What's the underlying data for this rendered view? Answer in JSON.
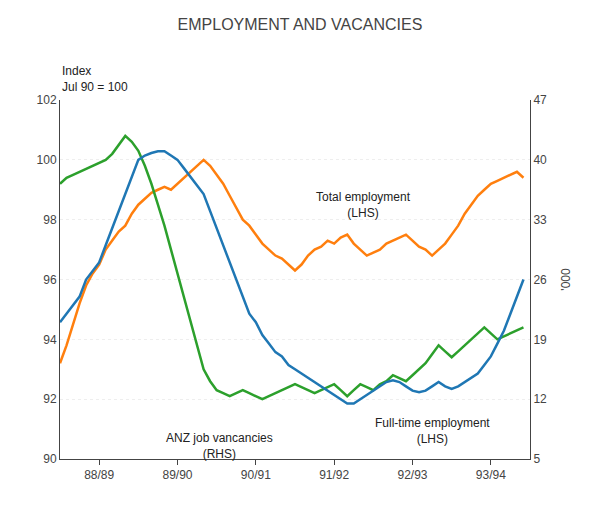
{
  "chart_data": {
    "type": "line",
    "title": "EMPLOYMENT AND VACANCIES",
    "ylabel": "Index\nJul 90 = 100",
    "y2label": "'000",
    "x": [
      0,
      1,
      2,
      3,
      4,
      5,
      6,
      7,
      8,
      9,
      10,
      11,
      12,
      13,
      14,
      15,
      16,
      17,
      18,
      19,
      20,
      21,
      22,
      23,
      24,
      25,
      26,
      27,
      28,
      29,
      30,
      31,
      32,
      33,
      34,
      35,
      36,
      37,
      38,
      39,
      40,
      41,
      42,
      43,
      44,
      45,
      46,
      47,
      48,
      49,
      50,
      51,
      52,
      53,
      54,
      55,
      56,
      57,
      58,
      59,
      60,
      61,
      62,
      63,
      64,
      65,
      66,
      67,
      68,
      69,
      70,
      71
    ],
    "xlim": [
      0,
      72
    ],
    "xticks": [
      {
        "value": 6,
        "label": "88/89"
      },
      {
        "value": 18,
        "label": "89/90"
      },
      {
        "value": 30,
        "label": "90/91"
      },
      {
        "value": 42,
        "label": "91/92"
      },
      {
        "value": 54,
        "label": "92/93"
      },
      {
        "value": 66,
        "label": "93/94"
      }
    ],
    "ylim": [
      90,
      102
    ],
    "yticks": [
      90,
      92,
      94,
      96,
      98,
      100,
      102
    ],
    "y2lim": [
      5,
      47
    ],
    "y2ticks": [
      5,
      12,
      19,
      26,
      33,
      40,
      47
    ],
    "grid": true,
    "series": [
      {
        "axis": "y2",
        "values": [
          21,
          22,
          23,
          24,
          26,
          27,
          28,
          30,
          32,
          34,
          36,
          38,
          40,
          40.5,
          40.8,
          41,
          41,
          40.5,
          40,
          39,
          38,
          37,
          36,
          34,
          32,
          30,
          28,
          26,
          24,
          22,
          21,
          19.5,
          18.5,
          17.5,
          17,
          16,
          15.5,
          15,
          14.5,
          14,
          13.5,
          13,
          12.5,
          12,
          11.5,
          11.5,
          12,
          12.5,
          13,
          13.5,
          14,
          14.2,
          14,
          13.5,
          13,
          12.8,
          13,
          13.5,
          14,
          13.5,
          13.2,
          13.5,
          14,
          14.5,
          15,
          16,
          17,
          18.5,
          20,
          22,
          24,
          26
        ]
      },
      {
        "values": [
          93.2,
          93.8,
          94.5,
          95.2,
          95.8,
          96.2,
          96.5,
          97.0,
          97.3,
          97.6,
          97.8,
          98.2,
          98.5,
          98.7,
          98.9,
          99.0,
          99.1,
          99.0,
          99.2,
          99.4,
          99.6,
          99.8,
          100.0,
          99.8,
          99.5,
          99.2,
          98.8,
          98.4,
          98.0,
          97.8,
          97.5,
          97.2,
          97.0,
          96.8,
          96.7,
          96.5,
          96.3,
          96.5,
          96.8,
          97.0,
          97.1,
          97.3,
          97.2,
          97.4,
          97.5,
          97.2,
          97.0,
          96.8,
          96.9,
          97.0,
          97.2,
          97.3,
          97.4,
          97.5,
          97.3,
          97.1,
          97.0,
          96.8,
          97.0,
          97.2,
          97.5,
          97.8,
          98.2,
          98.5,
          98.8,
          99.0,
          99.2,
          99.3,
          99.4,
          99.5,
          99.6,
          99.4
        ]
      },
      {
        "values": [
          99.2,
          99.4,
          99.5,
          99.6,
          99.7,
          99.8,
          99.9,
          100.0,
          100.2,
          100.5,
          100.8,
          100.6,
          100.3,
          99.8,
          99.2,
          98.5,
          97.8,
          97.0,
          96.2,
          95.4,
          94.6,
          93.8,
          93.0,
          92.6,
          92.3,
          92.2,
          92.1,
          92.2,
          92.3,
          92.2,
          92.1,
          92.0,
          92.1,
          92.2,
          92.3,
          92.4,
          92.5,
          92.4,
          92.3,
          92.2,
          92.3,
          92.4,
          92.5,
          92.3,
          92.1,
          92.3,
          92.5,
          92.4,
          92.3,
          92.5,
          92.6,
          92.8,
          92.7,
          92.6,
          92.8,
          93.0,
          93.2,
          93.5,
          93.8,
          93.6,
          93.4,
          93.6,
          93.8,
          94.0,
          94.2,
          94.4,
          94.2,
          94.0,
          94.1,
          94.2,
          94.3,
          94.4
        ]
      }
    ],
    "annotations": [
      {
        "text": "Total employment\n(LHS)",
        "x": 54,
        "y": 98.5
      },
      {
        "text": "Full-time employment\n(LHS)",
        "x": 48,
        "y": 91.5
      },
      {
        "text": "ANZ job vancancies\n(RHS)",
        "x": 33,
        "y": 91.0
      }
    ]
  }
}
